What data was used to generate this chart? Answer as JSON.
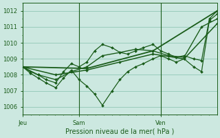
{
  "title": "Pression niveau de la mer( hPa )",
  "bg_color": "#cce8e0",
  "grid_color": "#99ccbb",
  "line_color": "#1a5c1a",
  "ylim": [
    1005.5,
    1012.5
  ],
  "yticks": [
    1006,
    1007,
    1008,
    1009,
    1010,
    1011,
    1012
  ],
  "xtick_labels": [
    "Jeu",
    "Sam",
    "Ven"
  ],
  "xtick_positions": [
    0,
    0.29,
    0.71
  ],
  "xmax": 1.0,
  "series": [
    {
      "x": [
        0.0,
        0.04,
        0.08,
        0.12,
        0.17,
        0.21,
        0.25,
        0.29,
        0.33,
        0.37,
        0.41,
        0.46,
        0.5,
        0.54,
        0.58,
        0.62,
        0.67,
        0.71,
        0.75,
        0.79,
        0.83,
        0.88,
        0.92,
        0.96,
        1.0
      ],
      "y": [
        1008.5,
        1008.1,
        1007.8,
        1007.5,
        1007.2,
        1007.8,
        1008.3,
        1007.7,
        1007.3,
        1006.8,
        1006.1,
        1007.0,
        1007.7,
        1008.2,
        1008.5,
        1008.7,
        1009.0,
        1009.2,
        1009.0,
        1008.8,
        1009.0,
        1008.5,
        1008.2,
        1011.4,
        1011.8
      ]
    },
    {
      "x": [
        0.0,
        0.04,
        0.08,
        0.12,
        0.17,
        0.21,
        0.25,
        0.29,
        0.33,
        0.37,
        0.41,
        0.46,
        0.5,
        0.54,
        0.58,
        0.62,
        0.67,
        0.71,
        0.75,
        0.79,
        0.83,
        0.88,
        0.92,
        0.96,
        1.0
      ],
      "y": [
        1008.5,
        1008.2,
        1008.0,
        1007.7,
        1007.5,
        1008.2,
        1008.7,
        1008.5,
        1008.8,
        1009.5,
        1009.9,
        1009.7,
        1009.4,
        1009.3,
        1009.5,
        1009.7,
        1009.9,
        1009.5,
        1009.3,
        1009.1,
        1009.2,
        1009.0,
        1008.9,
        1011.5,
        1012.0
      ]
    },
    {
      "x": [
        0.0,
        0.08,
        0.17,
        0.25,
        0.33,
        0.41,
        0.5,
        0.58,
        0.67,
        0.75,
        0.83,
        0.92,
        1.0
      ],
      "y": [
        1008.5,
        1008.0,
        1007.7,
        1008.2,
        1008.5,
        1009.2,
        1009.4,
        1009.6,
        1009.5,
        1009.2,
        1009.1,
        1011.0,
        1011.5
      ]
    },
    {
      "x": [
        0.0,
        0.17,
        0.33,
        0.5,
        0.67,
        0.83,
        1.0
      ],
      "y": [
        1008.5,
        1008.0,
        1008.3,
        1008.8,
        1009.3,
        1009.0,
        1011.2
      ]
    },
    {
      "x": [
        0.0,
        0.33,
        0.67,
        1.0
      ],
      "y": [
        1008.5,
        1008.4,
        1009.5,
        1012.0
      ]
    }
  ]
}
